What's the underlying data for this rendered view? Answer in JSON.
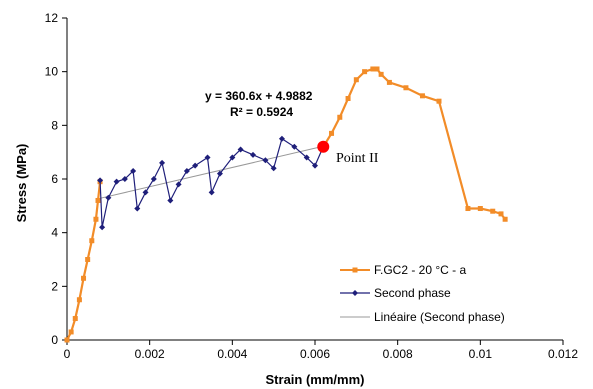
{
  "chart_data": {
    "type": "line",
    "xlabel": "Strain (mm/mm)",
    "ylabel": "Stress (MPa)",
    "xlim": [
      0,
      0.012
    ],
    "ylim": [
      0,
      12
    ],
    "x_ticks": [
      "0",
      "0.002",
      "0.004",
      "0.006",
      "0.008",
      "0.01",
      "0.012"
    ],
    "y_ticks": [
      "0",
      "2",
      "4",
      "6",
      "8",
      "10",
      "12"
    ],
    "grid": false,
    "legend_position": "bottom-right",
    "series": [
      {
        "name": "F.GC2 - 20 °C - a",
        "color": "#F28C28",
        "marker": "square",
        "points": [
          [
            0,
            0
          ],
          [
            0.0001,
            0.3
          ],
          [
            0.0002,
            0.8
          ],
          [
            0.0003,
            1.5
          ],
          [
            0.0004,
            2.3
          ],
          [
            0.0005,
            3.0
          ],
          [
            0.0006,
            3.7
          ],
          [
            0.0007,
            4.5
          ],
          [
            0.00075,
            5.2
          ],
          [
            0.0008,
            5.9
          ],
          [
            0.0062,
            7.2
          ],
          [
            0.0064,
            7.7
          ],
          [
            0.0066,
            8.3
          ],
          [
            0.0068,
            9.0
          ],
          [
            0.007,
            9.7
          ],
          [
            0.0072,
            10.0
          ],
          [
            0.0074,
            10.1
          ],
          [
            0.0075,
            10.1
          ],
          [
            0.0076,
            9.9
          ],
          [
            0.0078,
            9.6
          ],
          [
            0.0082,
            9.4
          ],
          [
            0.0086,
            9.1
          ],
          [
            0.009,
            8.9
          ],
          [
            0.0097,
            4.9
          ],
          [
            0.01,
            4.9
          ],
          [
            0.0103,
            4.8
          ],
          [
            0.0105,
            4.7
          ],
          [
            0.0106,
            4.5
          ]
        ]
      },
      {
        "name": "Second phase",
        "color": "#1F1F7A",
        "marker": "diamond",
        "points": [
          [
            0.0008,
            5.95
          ],
          [
            0.00085,
            4.2
          ],
          [
            0.001,
            5.3
          ],
          [
            0.0012,
            5.9
          ],
          [
            0.0014,
            6.0
          ],
          [
            0.0016,
            6.3
          ],
          [
            0.0017,
            4.9
          ],
          [
            0.0019,
            5.5
          ],
          [
            0.0021,
            6.0
          ],
          [
            0.0023,
            6.6
          ],
          [
            0.0025,
            5.2
          ],
          [
            0.0027,
            5.8
          ],
          [
            0.0029,
            6.3
          ],
          [
            0.0031,
            6.5
          ],
          [
            0.0034,
            6.8
          ],
          [
            0.0035,
            5.5
          ],
          [
            0.0037,
            6.2
          ],
          [
            0.004,
            6.8
          ],
          [
            0.0042,
            7.1
          ],
          [
            0.0045,
            6.9
          ],
          [
            0.0048,
            6.7
          ],
          [
            0.005,
            6.4
          ],
          [
            0.0052,
            7.5
          ],
          [
            0.0055,
            7.2
          ],
          [
            0.0058,
            6.8
          ],
          [
            0.006,
            6.5
          ],
          [
            0.0062,
            7.2
          ]
        ]
      },
      {
        "name": "Linéaire (Second phase)",
        "color": "#999999",
        "marker": "none",
        "points": [
          [
            0.0008,
            5.28
          ],
          [
            0.0062,
            7.22
          ]
        ]
      }
    ],
    "annotations": {
      "equation": "y = 360.6x + 4.9882",
      "r_squared": "R² = 0.5924",
      "point_label": "Point II",
      "point": [
        0.0062,
        7.2
      ],
      "point_color": "#FF0000"
    }
  }
}
